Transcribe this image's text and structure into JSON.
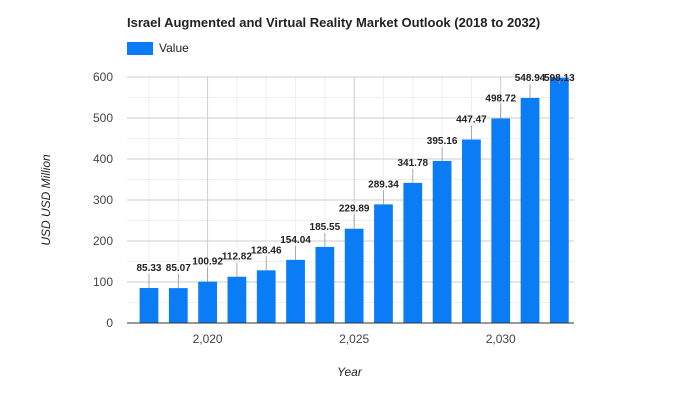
{
  "chart_data": {
    "type": "bar",
    "title": "Israel Augmented and Virtual Reality Market Outlook (2018 to 2032)",
    "xlabel": "Year",
    "ylabel": "USD USD Million",
    "x": [
      2018,
      2019,
      2020,
      2021,
      2022,
      2023,
      2024,
      2025,
      2026,
      2027,
      2028,
      2029,
      2030,
      2031,
      2032
    ],
    "series": [
      {
        "name": "Value",
        "values": [
          85.33,
          85.07,
          100.92,
          112.82,
          128.46,
          154.04,
          185.55,
          229.89,
          289.34,
          341.78,
          395.16,
          447.47,
          498.72,
          548.94,
          598.13
        ],
        "labels": [
          "85.33",
          "85.07",
          "100.92",
          "112.82",
          "128.46",
          "154.04",
          "185.55",
          "229.89",
          "289.34",
          "341.78",
          "395.16",
          "447.47",
          "498.72",
          "548.94",
          "598.13"
        ]
      }
    ],
    "ylim": [
      0,
      600
    ],
    "yticks": [
      0,
      100,
      200,
      300,
      400,
      500,
      600
    ],
    "ytick_labels": [
      "0",
      "100",
      "200",
      "300",
      "400",
      "500",
      "600"
    ],
    "xticks": [
      2020,
      2025,
      2030
    ],
    "xtick_labels": [
      "2,020",
      "2,025",
      "2,030"
    ],
    "legend_position": "top-left",
    "grid": true,
    "colors": {
      "bar": "#0a7cf5",
      "grid": "#e6e6e6",
      "grid_major": "#cccccc",
      "text": "#444444"
    }
  }
}
